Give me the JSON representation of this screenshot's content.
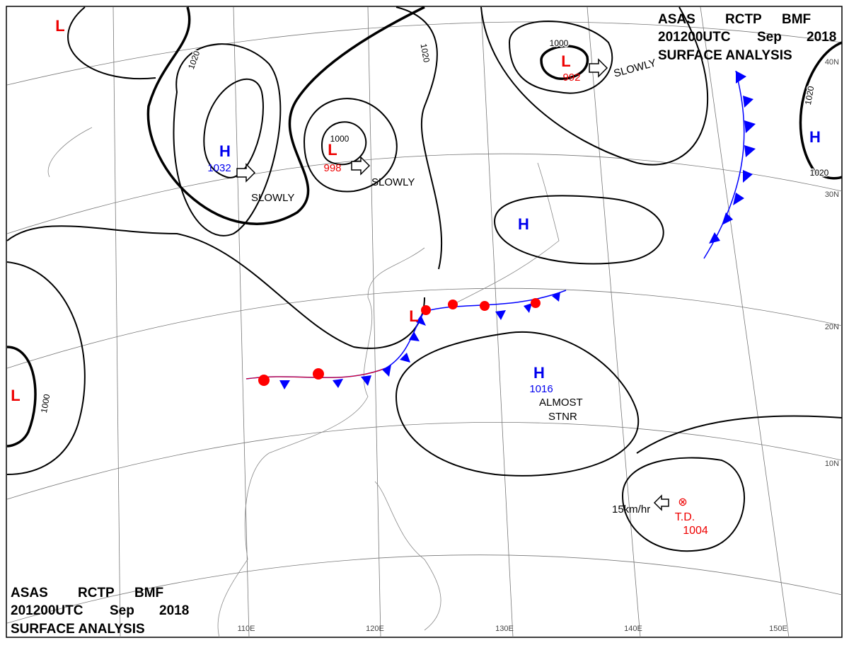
{
  "header": {
    "words": [
      "ASAS",
      "RCTP",
      "BMF"
    ],
    "time": [
      "201200UTC",
      "Sep",
      "2018"
    ],
    "title": "SURFACE ANALYSIS"
  },
  "systems": [
    {
      "label": "L"
    },
    {
      "label": "H",
      "pressure": 1032
    },
    {
      "label": "L",
      "pressure": 998
    },
    {
      "label": "L",
      "pressure": 992
    },
    {
      "label": "H"
    },
    {
      "label": "L"
    },
    {
      "label": "H",
      "pressure": 1016
    },
    {
      "label": "H"
    },
    {
      "label": "L"
    }
  ],
  "tropical_depression": {
    "symbol": "⊗",
    "label": "T.D.",
    "pressure": 1004
  },
  "isobar_labels": [
    1020,
    1020,
    1000,
    1000,
    1020,
    1020,
    1000
  ],
  "motions": [
    "SLOWLY",
    "SLOWLY",
    "SLOWLY",
    "15km/hr"
  ],
  "almost_stnr": [
    "ALMOST",
    "STNR"
  ],
  "latitudes": [
    "40N",
    "30N",
    "20N",
    "10N"
  ],
  "longitudes": [
    "110E",
    "120E",
    "130E",
    "140E",
    "150E"
  ]
}
